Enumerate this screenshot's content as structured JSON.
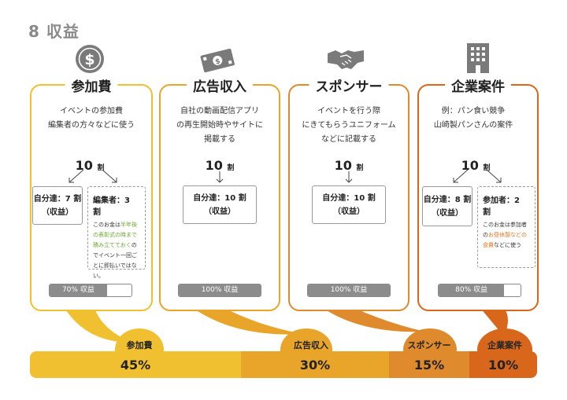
{
  "title": "8 収益",
  "colors": {
    "participation": "#f0c030",
    "ads": "#e9a42a",
    "sponsor": "#e08a2e",
    "corporate": "#d8671c",
    "progress_fill": "#8c8c8c"
  },
  "cards": [
    {
      "icon": "dollar-coin-icon",
      "title": "参加費",
      "desc": [
        "イベントの参加費",
        "編集者の方々などに使う"
      ],
      "ten_num": "10",
      "ten_unit": "割",
      "box_main": [
        "自分達：7 割",
        "（収益）"
      ],
      "side": {
        "head": "編集者：3 割",
        "body": [
          {
            "text": "このお金は",
            "hl": false
          },
          {
            "text": "半年後の表彰式の時まで積み立てておく",
            "hl": true
          },
          {
            "text": "のでイベント一回ごとに即払いではない。",
            "hl": false
          }
        ]
      },
      "progress_label": "70% 収益",
      "progress": 0.7
    },
    {
      "icon": "money-bill-icon",
      "title": "広告収入",
      "desc": [
        "自社の動画配信アプリ",
        "の再生開始時やサイトに",
        "掲載する"
      ],
      "ten_num": "10",
      "ten_unit": "割",
      "box_main": [
        "自分達：10 割",
        "（収益）"
      ],
      "progress_label": "100% 収益",
      "progress": 1.0
    },
    {
      "icon": "handshake-icon",
      "title": "スポンサー",
      "desc": [
        "イベントを行う際",
        "にきてもらうユニフォーム",
        "などに記載する"
      ],
      "ten_num": "10",
      "ten_unit": "割",
      "box_main": [
        "自分達：10 割",
        "（収益）"
      ],
      "progress_label": "100% 収益",
      "progress": 1.0
    },
    {
      "icon": "building-icon",
      "title": "企業案件",
      "desc": [
        "例：パン食い競争",
        "",
        "山崎製パンさんの案件"
      ],
      "ten_num": "10",
      "ten_unit": "割",
      "box_main": [
        "自分達：8 割",
        "（収益）"
      ],
      "side": {
        "head": "参加者：2 割",
        "body": [
          {
            "text": "このお金は参加者の",
            "hl": false
          },
          {
            "text": "お昼休憩などの食費",
            "hl": true
          },
          {
            "text": "などに使う",
            "hl": false
          }
        ]
      },
      "progress_label": "80% 収益",
      "progress": 0.8
    }
  ],
  "summary": [
    {
      "label": "参加費",
      "percent": "45%",
      "share": 45
    },
    {
      "label": "広告収入",
      "percent": "30%",
      "share": 30
    },
    {
      "label": "スポンサー",
      "percent": "15%",
      "share": 15
    },
    {
      "label": "企業案件",
      "percent": "10%",
      "share": 10
    }
  ]
}
